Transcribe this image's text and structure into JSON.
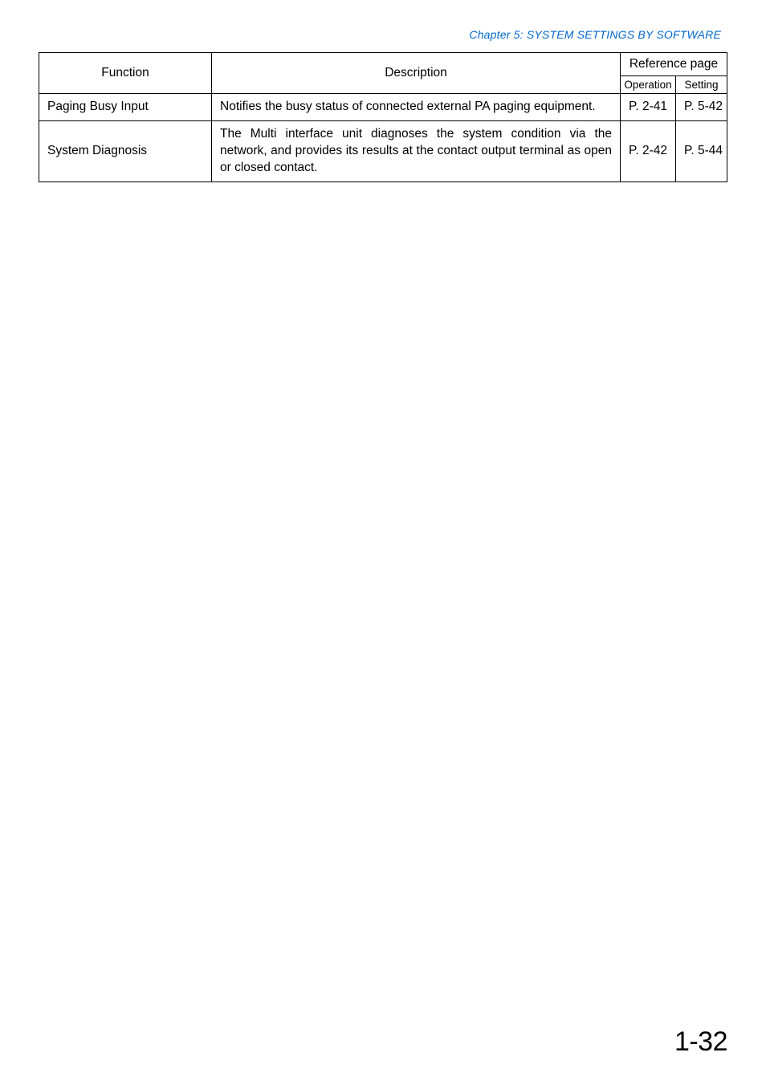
{
  "chapter_heading": "Chapter 5:  SYSTEM SETTINGS BY SOFTWARE",
  "table": {
    "headers": {
      "function": "Function",
      "description": "Description",
      "reference_page": "Reference page",
      "operation": "Operation",
      "setting": "Setting"
    },
    "rows": [
      {
        "function": "Paging Busy Input",
        "description": "Notifies the busy status of connected external PA paging equipment.",
        "operation": "P. 2-41",
        "setting": "P. 5-42"
      },
      {
        "function": "System Diagnosis",
        "description": "The Multi interface unit diagnoses the system condition via the network, and provides its results at the contact output terminal as open or closed contact.",
        "operation": "P. 2-42",
        "setting": "P. 5-44"
      }
    ]
  },
  "page_number": "1-32",
  "colors": {
    "link_color": "#0066cc",
    "heading_color": "#0066cc",
    "text_color": "#000000",
    "border_color": "#000000",
    "background": "#ffffff"
  }
}
